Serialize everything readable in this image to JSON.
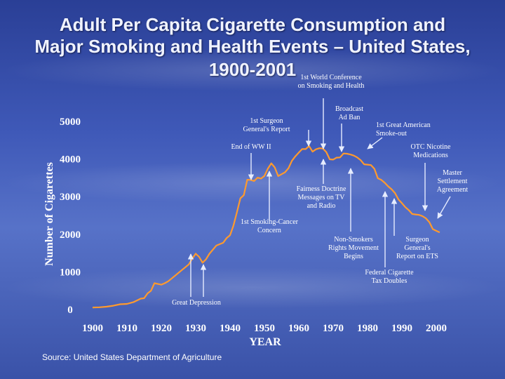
{
  "title_line1": "Adult Per Capita Cigarette Consumption and",
  "title_line2": "Major Smoking and Health Events – United States,",
  "title_line3": "1900-2001",
  "source": "Source: United States Department of Agriculture",
  "colors": {
    "line": "#ff9a2e",
    "arrow": "#e6ecff",
    "text": "#ffffff"
  },
  "chart_data": {
    "type": "line",
    "xlabel": "YEAR",
    "ylabel": "Number of Cigarettes",
    "xlim": [
      1900,
      2001
    ],
    "ylim": [
      0,
      5000
    ],
    "x_ticks": [
      1900,
      1910,
      1920,
      1930,
      1940,
      1950,
      1960,
      1970,
      1980,
      1990,
      2000
    ],
    "y_ticks": [
      0,
      1000,
      2000,
      3000,
      4000,
      5000
    ],
    "series": [
      {
        "x": [
          1900,
          1902,
          1904,
          1906,
          1908,
          1910,
          1912,
          1914,
          1915,
          1916,
          1917,
          1918,
          1919,
          1920,
          1921,
          1922,
          1924,
          1926,
          1928,
          1929,
          1930,
          1931,
          1932,
          1933,
          1934,
          1936,
          1938,
          1939,
          1940,
          1941,
          1942,
          1943,
          1944,
          1945,
          1946,
          1947,
          1948,
          1949,
          1950,
          1951,
          1952,
          1953,
          1954,
          1955,
          1956,
          1957,
          1958,
          1959,
          1960,
          1961,
          1962,
          1963,
          1964,
          1965,
          1966,
          1967,
          1968,
          1969,
          1970,
          1971,
          1972,
          1973,
          1974,
          1975,
          1976,
          1977,
          1978,
          1979,
          1980,
          1981,
          1982,
          1983,
          1984,
          1985,
          1986,
          1987,
          1988,
          1989,
          1990,
          1991,
          1992,
          1993,
          1994,
          1995,
          1996,
          1997,
          1998,
          1999,
          2000,
          2001
        ],
        "values": [
          54,
          60,
          75,
          100,
          140,
          150,
          200,
          290,
          300,
          430,
          500,
          700,
          680,
          660,
          700,
          750,
          900,
          1050,
          1200,
          1350,
          1485,
          1399,
          1245,
          1334,
          1483,
          1700,
          1775,
          1900,
          1976,
          2236,
          2585,
          2956,
          3039,
          3449,
          3446,
          3416,
          3505,
          3480,
          3552,
          3744,
          3886,
          3778,
          3546,
          3597,
          3650,
          3755,
          3953,
          4073,
          4171,
          4266,
          4265,
          4345,
          4195,
          4259,
          4287,
          4280,
          4186,
          3993,
          3985,
          4037,
          4043,
          4148,
          4141,
          4122,
          4091,
          4043,
          3970,
          3861,
          3851,
          3840,
          3741,
          3488,
          3446,
          3370,
          3274,
          3197,
          3096,
          2926,
          2828,
          2720,
          2641,
          2539,
          2527,
          2515,
          2482,
          2423,
          2320,
          2136,
          2092,
          2051
        ]
      }
    ],
    "annotations": [
      {
        "text_lines": [
          "1st World Conference",
          "on Smoking and Health"
        ],
        "year": 1967
      },
      {
        "text_lines": [
          "Broadcast",
          "Ad Ban"
        ],
        "year": 1971
      },
      {
        "text_lines": [
          "1st Surgeon",
          "General's Report"
        ],
        "year": 1964
      },
      {
        "text_lines": [
          "1st Great American",
          "Smoke-out"
        ],
        "year": 1976
      },
      {
        "text_lines": [
          "End of WW II"
        ],
        "year": 1945
      },
      {
        "text_lines": [
          "OTC Nicotine",
          "Medications"
        ],
        "year": 1996
      },
      {
        "text_lines": [
          "Master",
          "Settlement",
          "Agreement"
        ],
        "year": 1998
      },
      {
        "text_lines": [
          "Fairness Doctrine",
          "Messages on TV",
          "and Radio"
        ],
        "year": 1968
      },
      {
        "text_lines": [
          "1st Smoking-Cancer",
          "Concern"
        ],
        "year": 1953
      },
      {
        "text_lines": [
          "Non-Smokers",
          "Rights Movement",
          "Begins"
        ],
        "year": 1972
      },
      {
        "text_lines": [
          "Surgeon",
          "General's",
          "Report on ETS"
        ],
        "year": 1986
      },
      {
        "text_lines": [
          "Federal Cigarette",
          "Tax Doubles"
        ],
        "year": 1983
      },
      {
        "text_lines": [
          "Great Depression"
        ],
        "year": 1929
      }
    ]
  }
}
